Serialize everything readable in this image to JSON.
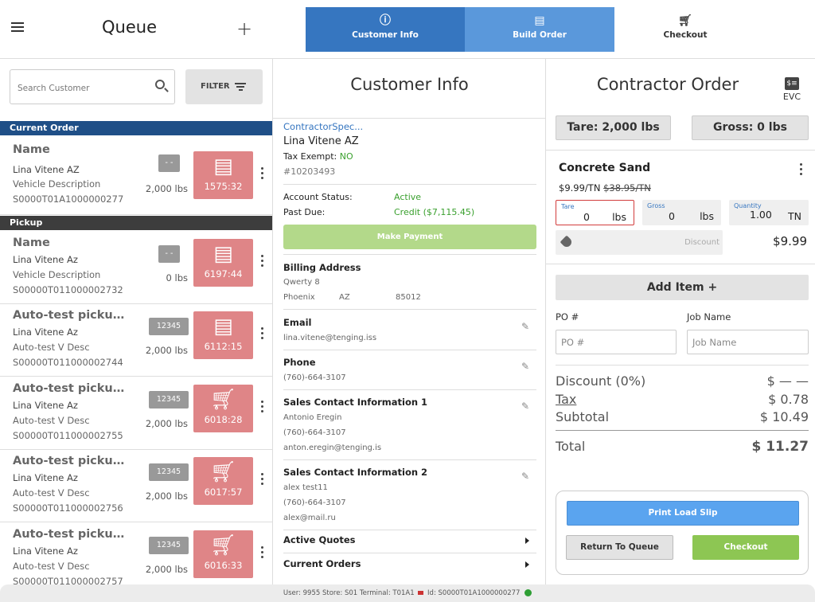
{
  "header": {
    "title": "Queue",
    "plus": "+",
    "steps": [
      {
        "label": "Customer Info",
        "icon": "info-icon"
      },
      {
        "label": "Build Order",
        "icon": "edit-note-icon"
      },
      {
        "label": "Checkout",
        "icon": "cart-icon"
      }
    ]
  },
  "queue": {
    "search_placeholder": "Search Customer",
    "filter_label": "FILTER",
    "current_order_label": "Current Order",
    "pickup_label": "Pickup",
    "current": {
      "name": "Name",
      "customer": "Lina Vitene AZ",
      "vehicle": "Vehicle Description",
      "order_id": "S0000T01A1000000277",
      "badge": "- -",
      "weight": "2,000 lbs",
      "time": "1575:32",
      "icon": "edit-note-icon"
    },
    "pickups": [
      {
        "name": "Name",
        "customer": "Lina Vitene Az",
        "vehicle": "Vehicle Description",
        "order_id": "S00000T011000002732",
        "badge": "- -",
        "weight": "0 lbs",
        "time": "6197:44",
        "icon": "edit-note-icon"
      },
      {
        "name": "Auto-test pickup F...",
        "customer": "Lina Vitene Az",
        "vehicle": "Auto-test V Desc",
        "order_id": "S00000T011000002744",
        "badge": "12345",
        "weight": "2,000 lbs",
        "time": "6112:15",
        "icon": "edit-note-icon"
      },
      {
        "name": "Auto-test pickup T...",
        "customer": "Lina Vitene Az",
        "vehicle": "Auto-test V Desc",
        "order_id": "S00000T011000002755",
        "badge": "12345",
        "weight": "2,000 lbs",
        "time": "6018:28",
        "icon": "cart-icon"
      },
      {
        "name": "Auto-test pickup T...",
        "customer": "Lina Vitene Az",
        "vehicle": "Auto-test V Desc",
        "order_id": "S00000T011000002756",
        "badge": "12345",
        "weight": "2,000 lbs",
        "time": "6017:57",
        "icon": "cart-icon"
      },
      {
        "name": "Auto-test pickup T...",
        "customer": "Lina Vitene Az",
        "vehicle": "Auto-test V Desc",
        "order_id": "S00000T011000002757",
        "badge": "12345",
        "weight": "2,000 lbs",
        "time": "6016:33",
        "icon": "cart-icon"
      }
    ]
  },
  "customer": {
    "title": "Customer Info",
    "type": "ContractorSpec...",
    "name": "Lina Vitene AZ",
    "tax_exempt_label": "Tax Exempt:",
    "tax_exempt_value": "NO",
    "number": "#10203493",
    "account_status_label": "Account Status:",
    "account_status_value": "Active",
    "past_due_label": "Past Due:",
    "past_due_value": "Credit ($7,115.45)",
    "make_payment": "Make Payment",
    "billing_title": "Billing Address",
    "billing_line1": "Qwerty 8",
    "billing_city": "Phoenix",
    "billing_state": "AZ",
    "billing_zip": "85012",
    "email_title": "Email",
    "email": "lina.vitene@tenging.iss",
    "phone_title": "Phone",
    "phone": "(760)-664-3107",
    "sales1_title": "Sales Contact Information 1",
    "sales1_name": "Antonio Eregin",
    "sales1_phone": "(760)-664-3107",
    "sales1_email": "anton.eregin@tenging.is",
    "sales2_title": "Sales Contact Information 2",
    "sales2_name": "alex test11",
    "sales2_phone": "(760)-664-3107",
    "sales2_email": "alex@mail.ru",
    "active_quotes": "Active Quotes",
    "current_orders": "Current Orders"
  },
  "order": {
    "title": "Contractor Order",
    "evc_label": "EVC",
    "tare": "Tare: 2,000 lbs",
    "gross": "Gross:  0 lbs",
    "item": {
      "name": "Concrete Sand",
      "price": "$9.99/TN",
      "old_price": "$38.95/TN",
      "tare_label": "Tare",
      "tare_value": "0",
      "tare_unit": "lbs",
      "gross_label": "Gross",
      "gross_value": "0",
      "gross_unit": "lbs",
      "qty_label": "Quantity",
      "qty_value": "1.00",
      "qty_unit": "TN",
      "discount_placeholder": "Discount",
      "total": "$9.99"
    },
    "add_item": "Add Item +",
    "po_label": "PO #",
    "po_placeholder": "PO #",
    "job_label": "Job Name",
    "job_placeholder": "Job Name",
    "discount_label": "Discount (0%)",
    "discount_value": "$ — —",
    "tax_label": "Tax",
    "tax_value": "$ 0.78",
    "subtotal_label": "Subtotal",
    "subtotal_value": "$ 10.49",
    "total_label": "Total",
    "total_value": "$ 11.27",
    "print_load_slip": "Print Load Slip",
    "return_to_queue": "Return To Queue",
    "checkout": "Checkout"
  },
  "status": {
    "text_a": "User: 9955  Store: S01  Terminal: T01A1",
    "text_b": "Id: S0000T01A1000000277"
  },
  "colors": {
    "primary": "#3676c0",
    "step_active": "#5a98db",
    "tile": "#df8587",
    "green": "#8dc653",
    "print": "#5aa4ef"
  }
}
